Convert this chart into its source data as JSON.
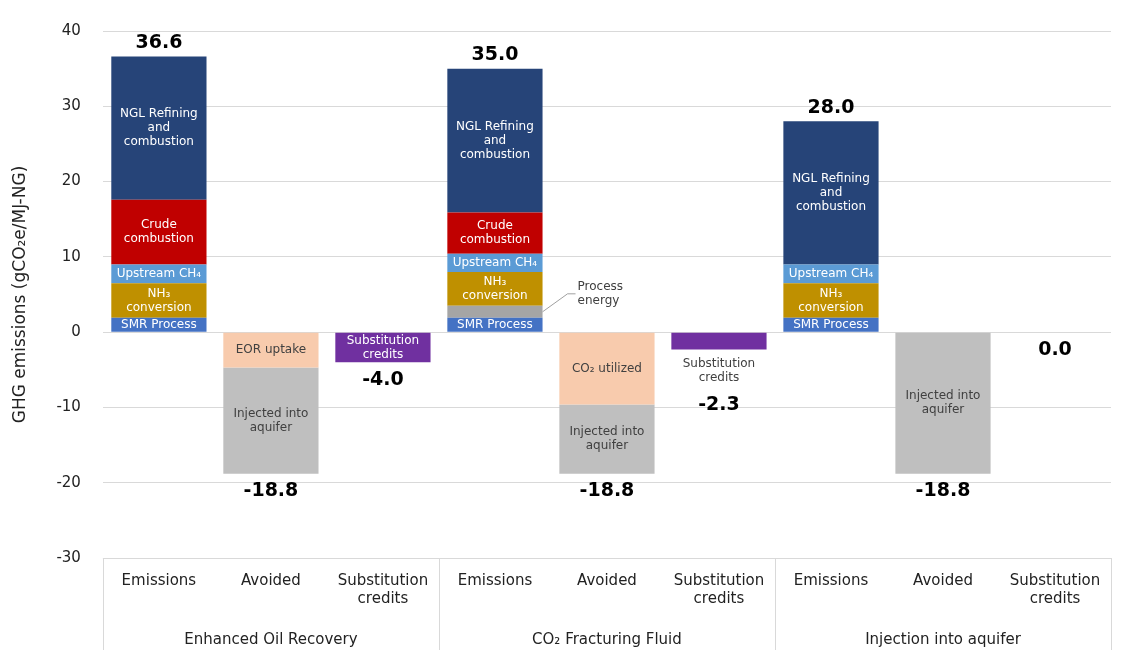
{
  "chart_data": {
    "type": "bar",
    "stacked": true,
    "ylabel": "GHG emissions (gCO₂e/MJ-NG)",
    "categories": [
      "Emissions",
      "Avoided",
      "Substitution credits",
      "Emissions",
      "Avoided",
      "Substitution credits",
      "Emissions",
      "Avoided",
      "Substitution credits"
    ],
    "series": [
      {
        "name": "SMR Process",
        "color": "#4472c4",
        "values": [
          1.9,
          null,
          null,
          1.9,
          null,
          null,
          1.9,
          null,
          null
        ]
      },
      {
        "name": "Process energy",
        "color": "#a5a5a5",
        "values": [
          null,
          null,
          null,
          1.6,
          null,
          null,
          null,
          null,
          null
        ]
      },
      {
        "name": "NH₃ conversion",
        "color": "#bf9000",
        "values": [
          4.6,
          null,
          null,
          4.5,
          null,
          null,
          4.6,
          null,
          null
        ]
      },
      {
        "name": "Upstream CH₄",
        "color": "#5b9bd5",
        "values": [
          2.5,
          null,
          null,
          2.4,
          null,
          null,
          2.5,
          null,
          null
        ]
      },
      {
        "name": "Crude combustion",
        "color": "#c00000",
        "values": [
          8.6,
          null,
          null,
          5.5,
          null,
          null,
          null,
          null,
          null
        ]
      },
      {
        "name": "NGL Refining and combustion",
        "color": "#264478",
        "values": [
          19.0,
          null,
          null,
          19.1,
          null,
          null,
          19.0,
          null,
          null
        ]
      },
      {
        "name": "EOR uptake",
        "color": "#f8cbad",
        "values": [
          null,
          -4.7,
          null,
          null,
          null,
          null,
          null,
          null,
          null
        ]
      },
      {
        "name": "CO₂ utilized",
        "color": "#f8cbad",
        "values": [
          null,
          null,
          null,
          null,
          -9.6,
          null,
          null,
          null,
          null
        ]
      },
      {
        "name": "Injected into aquifer",
        "color": "#bfbfbf",
        "values": [
          null,
          -14.1,
          null,
          null,
          -9.2,
          null,
          null,
          -18.8,
          null
        ]
      },
      {
        "name": "Substitution credits",
        "color": "#7030a0",
        "values": [
          null,
          null,
          -4.0,
          null,
          null,
          -2.3,
          null,
          null,
          0.0
        ]
      }
    ],
    "totals": [
      "36.6",
      "-18.8",
      "-4.0",
      "35.0",
      "-18.8",
      "-2.3",
      "28.0",
      "-18.8",
      "0.0"
    ],
    "ylim": [
      -30,
      40
    ],
    "yticks": [
      -30,
      -20,
      -10,
      0,
      10,
      20,
      30,
      40
    ],
    "grid": "y",
    "legend": false,
    "annotations": [
      "Enhanced Oil Recovery",
      "CO₂ Fracturing Fluid",
      "Injection into aquifer"
    ]
  }
}
